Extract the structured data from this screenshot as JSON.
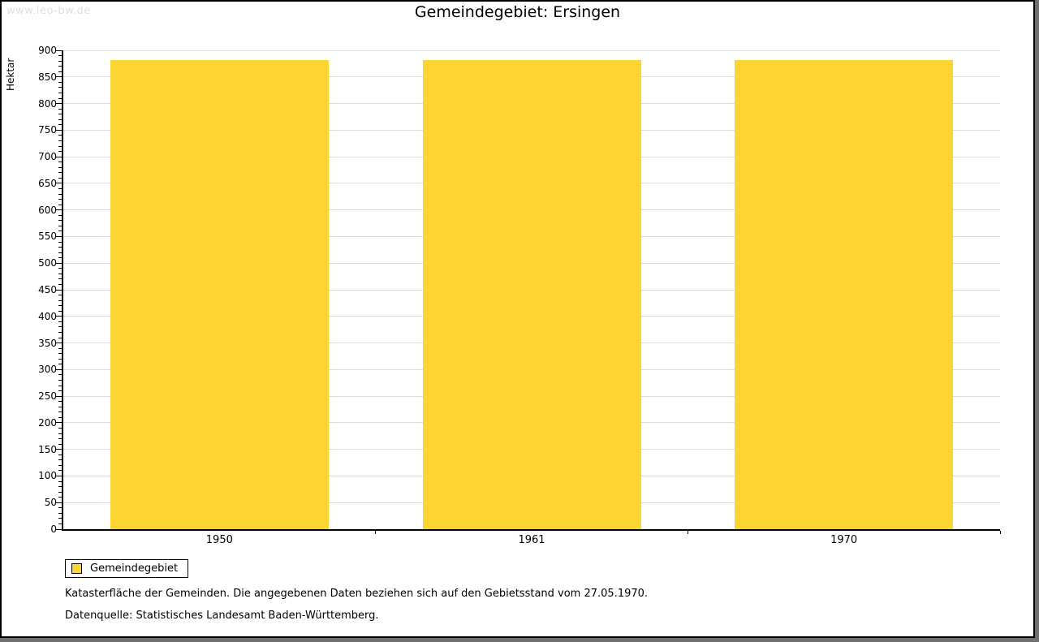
{
  "watermark": "www.leo-bw.de",
  "title": "Gemeindegebiet: Ersingen",
  "legend": {
    "label": "Gemeindegebiet"
  },
  "footnotes": {
    "line1": "Katasterfläche der Gemeinden. Die angegebenen Daten beziehen sich auf den Gebietsstand vom 27.05.1970.",
    "line2": "Datenquelle: Statistisches Landesamt Baden-Württemberg."
  },
  "chart_data": {
    "type": "bar",
    "title": "Gemeindegebiet: Ersingen",
    "categories": [
      "1950",
      "1961",
      "1970"
    ],
    "series": [
      {
        "name": "Gemeindegebiet",
        "values": [
          881,
          881,
          881
        ]
      }
    ],
    "xlabel": "",
    "ylabel": "Hektar",
    "ylim": [
      0,
      900
    ],
    "ytick_major": 50,
    "ytick_minor": 10,
    "grid": true,
    "legend_position": "bottom-left"
  },
  "colors": {
    "bar": "#FCD532",
    "grid": "#DCDCDC",
    "axis": "#000000",
    "text": "#000000",
    "watermark": "#DEDEDE",
    "frame_shadow": "#707070"
  }
}
